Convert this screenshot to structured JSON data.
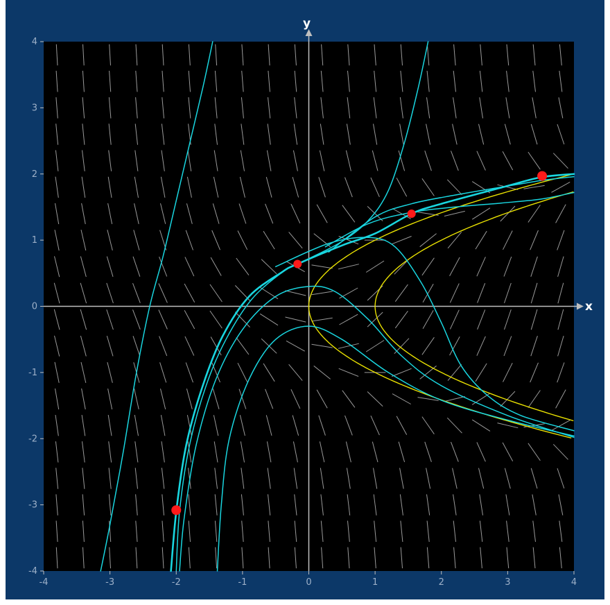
{
  "chart_data": {
    "type": "line",
    "title": "",
    "xlabel": "x",
    "ylabel": "y",
    "xlim": [
      -4,
      4
    ],
    "ylim": [
      -4,
      4
    ],
    "grid": false,
    "x_ticks": [
      "-4",
      "-3",
      "-2",
      "-1",
      "0",
      "1",
      "2",
      "3",
      "4"
    ],
    "y_ticks": [
      "-4",
      "-3",
      "-2",
      "-1",
      "0",
      "1",
      "2",
      "3",
      "4"
    ],
    "slope_field": {
      "x_range": [
        -3.8,
        3.8
      ],
      "y_range": [
        -3.8,
        3.8
      ],
      "x_step": 0.4,
      "y_step": 0.4
    },
    "series": [
      {
        "values": [
          [
            -3.14,
            -4.0
          ],
          [
            -3.0,
            -3.3
          ],
          [
            -2.8,
            -2.2
          ],
          [
            -2.6,
            -1.0
          ],
          [
            -2.4,
            0.0
          ],
          [
            -2.2,
            0.75
          ],
          [
            -2.0,
            1.6
          ],
          [
            -1.8,
            2.45
          ],
          [
            -1.6,
            3.3
          ],
          [
            -1.45,
            4.0
          ]
        ]
      },
      {
        "values": [
          [
            -2.08,
            -4.0
          ],
          [
            -2.0,
            -3.1
          ],
          [
            -1.85,
            -2.1
          ],
          [
            -1.6,
            -1.2
          ],
          [
            -1.3,
            -0.45
          ],
          [
            -0.9,
            0.15
          ],
          [
            -0.4,
            0.52
          ],
          [
            -0.17,
            0.64
          ],
          [
            0.5,
            0.92
          ],
          [
            1.0,
            1.1
          ],
          [
            1.55,
            1.4
          ],
          [
            2.0,
            1.55
          ],
          [
            3.0,
            1.82
          ],
          [
            3.5,
            1.95
          ],
          [
            4.0,
            2.0
          ]
        ]
      },
      {
        "values": [
          [
            -2.0,
            -4.0
          ],
          [
            -1.95,
            -3.1
          ],
          [
            -1.8,
            -2.1
          ],
          [
            -1.55,
            -1.2
          ],
          [
            -1.25,
            -0.5
          ],
          [
            -0.85,
            0.12
          ],
          [
            -0.35,
            0.55
          ],
          [
            0.0,
            0.72
          ],
          [
            0.5,
            0.98
          ],
          [
            0.9,
            1.3
          ],
          [
            1.2,
            1.75
          ],
          [
            1.45,
            2.5
          ],
          [
            1.65,
            3.3
          ],
          [
            1.8,
            4.0
          ]
        ]
      },
      {
        "values": [
          [
            -1.95,
            -4.0
          ],
          [
            -1.88,
            -3.2
          ],
          [
            -1.7,
            -2.1
          ],
          [
            -1.4,
            -1.1
          ],
          [
            -1.0,
            -0.35
          ],
          [
            -0.5,
            0.15
          ],
          [
            0.0,
            0.3
          ],
          [
            0.4,
            0.22
          ],
          [
            0.9,
            -0.2
          ],
          [
            1.4,
            -0.75
          ],
          [
            2.0,
            -1.2
          ],
          [
            3.0,
            -1.65
          ],
          [
            4.0,
            -1.98
          ]
        ]
      },
      {
        "values": [
          [
            -1.38,
            -4.0
          ],
          [
            -1.32,
            -3.0
          ],
          [
            -1.2,
            -2.0
          ],
          [
            -0.9,
            -1.1
          ],
          [
            -0.5,
            -0.5
          ],
          [
            0.0,
            -0.3
          ],
          [
            0.5,
            -0.5
          ],
          [
            1.2,
            -1.0
          ],
          [
            2.0,
            -1.42
          ],
          [
            3.0,
            -1.72
          ],
          [
            4.0,
            -1.96
          ]
        ]
      },
      {
        "values": [
          [
            -0.5,
            0.6
          ],
          [
            0.3,
            0.95
          ],
          [
            0.9,
            1.04
          ],
          [
            1.3,
            0.9
          ],
          [
            1.7,
            0.35
          ],
          [
            2.0,
            -0.25
          ],
          [
            2.3,
            -0.9
          ],
          [
            2.7,
            -1.35
          ],
          [
            3.2,
            -1.65
          ],
          [
            4.0,
            -1.88
          ]
        ]
      },
      {
        "values": [
          [
            0.25,
            0.9
          ],
          [
            0.9,
            1.25
          ],
          [
            1.55,
            1.42
          ],
          [
            2.2,
            1.5
          ],
          [
            2.9,
            1.56
          ],
          [
            3.5,
            1.62
          ],
          [
            4.0,
            1.72
          ]
        ]
      },
      {
        "values": [
          [
            0.3,
            0.82
          ],
          [
            1.0,
            1.35
          ],
          [
            1.55,
            1.55
          ],
          [
            2.2,
            1.68
          ],
          [
            2.9,
            1.8
          ],
          [
            3.5,
            1.9
          ],
          [
            4.0,
            1.96
          ]
        ]
      }
    ],
    "isoclines": [
      {
        "c": 0
      },
      {
        "c": 1
      }
    ],
    "points": [
      {
        "x": -2.0,
        "y": -3.08
      },
      {
        "x": -0.17,
        "y": 0.64
      },
      {
        "x": 1.55,
        "y": 1.4
      },
      {
        "x": 3.52,
        "y": 1.97
      }
    ],
    "colors": {
      "frame": "#0c3868",
      "plot_background": "#000000",
      "axes": "#bfbfbf",
      "ticks_text": "#9db0c8",
      "slope_segments": "#9a9a9a",
      "solution_curves": "#19d6e0",
      "isoclines": "#e8e000",
      "points": "#ff1a1a",
      "axis_name": "#ffffff"
    }
  }
}
